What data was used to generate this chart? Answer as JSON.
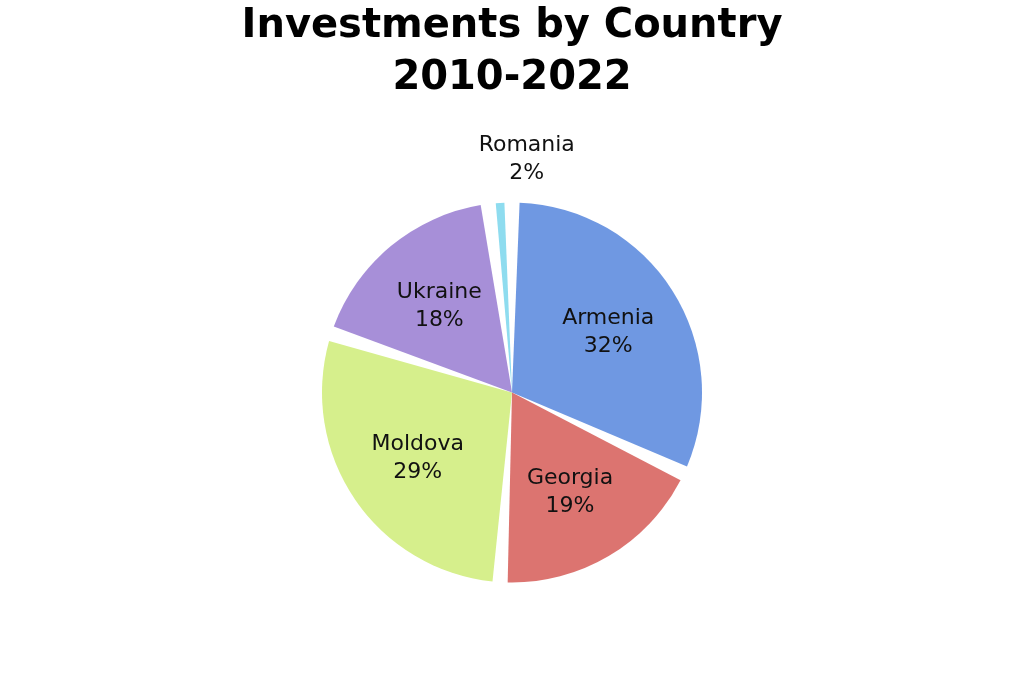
{
  "chart_data": {
    "type": "pie",
    "title": [
      "Investments by Country",
      "2010-2022"
    ],
    "categories": [
      "Armenia",
      "Georgia",
      "Moldova",
      "Ukraine",
      "Romania"
    ],
    "values": [
      32,
      19,
      29,
      18,
      2
    ],
    "value_labels": [
      "32%",
      "19%",
      "29%",
      "18%",
      "2%"
    ],
    "colors": [
      "#6f98e2",
      "#dc7470",
      "#d6ef8c",
      "#a78fd8",
      "#8edcef"
    ]
  }
}
